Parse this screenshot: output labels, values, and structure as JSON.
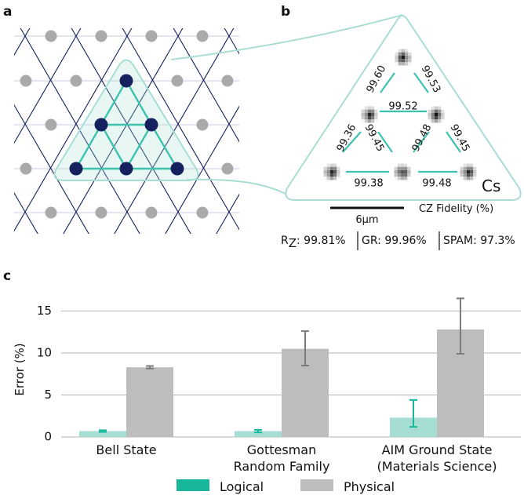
{
  "panels": {
    "a": {
      "label": "a"
    },
    "b": {
      "label": "b",
      "atom_label": "Cs",
      "fidelity_caption": "CZ Fidelity (%)",
      "scalebar_label": "6µm",
      "czf": [
        "99.60",
        "99.53",
        "99.52",
        "99.36",
        "99.45",
        "99.48",
        "99.45",
        "99.38",
        "99.48"
      ],
      "footer": {
        "rz_prefix": "R",
        "rz_sub": "Z",
        "rz_value": ": 99.81%",
        "gr": "GR: 99.96%",
        "spam": "SPAM: 97.3%"
      }
    },
    "c": {
      "label": "c"
    }
  },
  "colors": {
    "navy": "#15205e",
    "teal": "#3cc3ae",
    "teal_light": "#a6ded4",
    "logical": "#18b79c",
    "physical": "#bdbdbd",
    "grid_node": "#aaaaaa"
  },
  "chart_data": {
    "type": "bar",
    "categories": [
      [
        "Bell State"
      ],
      [
        "Gottesman",
        "Random Family"
      ],
      [
        "AIM Ground State",
        "(Materials Science)"
      ]
    ],
    "series": [
      {
        "name": "Logical",
        "values": [
          0.7,
          0.7,
          2.3
        ],
        "err_low": [
          0.6,
          0.55,
          1.2
        ],
        "err_high": [
          0.8,
          0.85,
          4.4
        ]
      },
      {
        "name": "Physical",
        "values": [
          8.3,
          10.5,
          12.8
        ],
        "err_low": [
          8.15,
          8.5,
          9.9
        ],
        "err_high": [
          8.45,
          12.6,
          16.5
        ]
      }
    ],
    "ylabel": "Error (%)",
    "ylim": [
      0,
      17
    ],
    "yticks": [
      "0",
      "5",
      "10",
      "15"
    ],
    "grid": "horizontal",
    "legend": "bottom-center"
  }
}
